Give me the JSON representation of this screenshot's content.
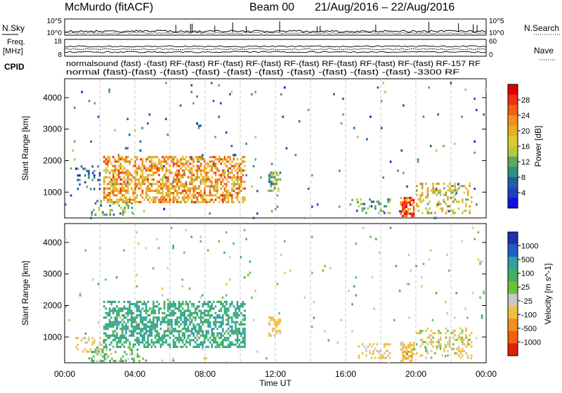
{
  "header": {
    "title": "McMurdo (fitACF)",
    "beam_label": "Beam 00",
    "date_range": "21/Aug/2016 – 22/Aug/2016"
  },
  "left_labels": {
    "nsky": "N.Sky",
    "freq_line1": "Freq.",
    "freq_line2": "[MHz]",
    "cpid": "CPID"
  },
  "right_labels": {
    "nsearch": "N.Search",
    "nave": "Nave"
  },
  "noise_panel": {
    "left_ticks": [
      "10^5",
      "10^0"
    ],
    "right_ticks": [
      "10^5",
      "10^0"
    ]
  },
  "freq_panel": {
    "left_ticks": [
      "18",
      "8"
    ],
    "right_ticks": [
      "60",
      "0"
    ]
  },
  "cpid_text": {
    "row1": "normalsound (fast) -(fast) RF-(fast) RF-(fast) RF-(fast) RF-(fast) RF-(fast) RF-(fast) RF-(fast) RF-157 RF",
    "row2": "normal (fast)-(fast) -(fast) -(fast) -(fast) -(fast) -(fast) -(fast) -(fast) -(fast) -3300 RF"
  },
  "colorbars": {
    "power": {
      "label": "Power [dB]",
      "ticks": [
        "28",
        "24",
        "20",
        "16",
        "12",
        "8",
        "4"
      ],
      "colors": [
        "#e00000",
        "#f03010",
        "#f06010",
        "#f09020",
        "#e8b020",
        "#d8cc30",
        "#b8c840",
        "#60a860",
        "#309080",
        "#2060a0",
        "#2040c0",
        "#1010e0"
      ]
    },
    "velocity": {
      "label": "Velocity [m s^-1]",
      "ticks": [
        "1000",
        "500",
        "100",
        "25",
        "-25",
        "-100",
        "-500",
        "-1000"
      ],
      "colors": [
        "#2030b0",
        "#2060c0",
        "#30a0a0",
        "#40b060",
        "#70c040",
        "#c8c8c8",
        "#f0c040",
        "#f09020",
        "#f06010",
        "#e02000"
      ]
    }
  },
  "chart_data": {
    "type": "heatmap",
    "xlabel": "Time UT",
    "x_ticks": [
      "00:00",
      "04:00",
      "08:00",
      "12:00",
      "16:00",
      "20:00",
      "00:00"
    ],
    "x_range_hours": [
      0,
      24
    ],
    "panels": [
      {
        "name": "power",
        "ylabel": "Slant Range [km]",
        "y_ticks": [
          "4000",
          "3000",
          "2000",
          "1000"
        ],
        "ylim": [
          180,
          4600
        ],
        "colorbar": "power",
        "regions": [
          {
            "t0": 0.6,
            "t1": 2.0,
            "r0": 1100,
            "r1": 1850,
            "density": 0.22,
            "value": 6
          },
          {
            "t0": 2.2,
            "t1": 10.3,
            "r0": 650,
            "r1": 2150,
            "density": 0.55,
            "value": 22
          },
          {
            "t0": 1.5,
            "t1": 3.8,
            "r0": 250,
            "r1": 750,
            "density": 0.25,
            "value": 12
          },
          {
            "t0": 11.6,
            "t1": 12.3,
            "r0": 1050,
            "r1": 1650,
            "density": 0.55,
            "value": 12
          },
          {
            "t0": 16.6,
            "t1": 18.5,
            "r0": 300,
            "r1": 800,
            "density": 0.25,
            "value": 10
          },
          {
            "t0": 19.1,
            "t1": 19.9,
            "r0": 250,
            "r1": 850,
            "density": 0.7,
            "value": 28
          },
          {
            "t0": 20.0,
            "t1": 23.2,
            "r0": 300,
            "r1": 1300,
            "density": 0.28,
            "value": 18
          },
          {
            "t0": 0.0,
            "t1": 24.0,
            "r0": 200,
            "r1": 4500,
            "density": 0.012,
            "value": 8
          }
        ]
      },
      {
        "name": "velocity",
        "ylabel": "Slant Range [km]",
        "y_ticks": [
          "4000",
          "3000",
          "2000",
          "1000"
        ],
        "ylim": [
          180,
          4600
        ],
        "colorbar": "velocity",
        "regions": [
          {
            "t0": 0.6,
            "t1": 2.2,
            "r0": 500,
            "r1": 1000,
            "density": 0.35,
            "value": -150
          },
          {
            "t0": 2.2,
            "t1": 10.3,
            "r0": 650,
            "r1": 2150,
            "density": 0.55,
            "value": 300
          },
          {
            "t0": 1.5,
            "t1": 4.5,
            "r0": 250,
            "r1": 700,
            "density": 0.3,
            "value": 60
          },
          {
            "t0": 11.6,
            "t1": 12.3,
            "r0": 1050,
            "r1": 1650,
            "density": 0.55,
            "value": -150
          },
          {
            "t0": 16.6,
            "t1": 18.5,
            "r0": 300,
            "r1": 800,
            "density": 0.25,
            "value": -120
          },
          {
            "t0": 19.1,
            "t1": 19.9,
            "r0": 250,
            "r1": 850,
            "density": 0.55,
            "value": -200
          },
          {
            "t0": 20.0,
            "t1": 23.2,
            "r0": 300,
            "r1": 1300,
            "density": 0.28,
            "value": -60
          },
          {
            "t0": 0.0,
            "t1": 24.0,
            "r0": 200,
            "r1": 4500,
            "density": 0.012,
            "value": 0
          }
        ]
      }
    ]
  }
}
